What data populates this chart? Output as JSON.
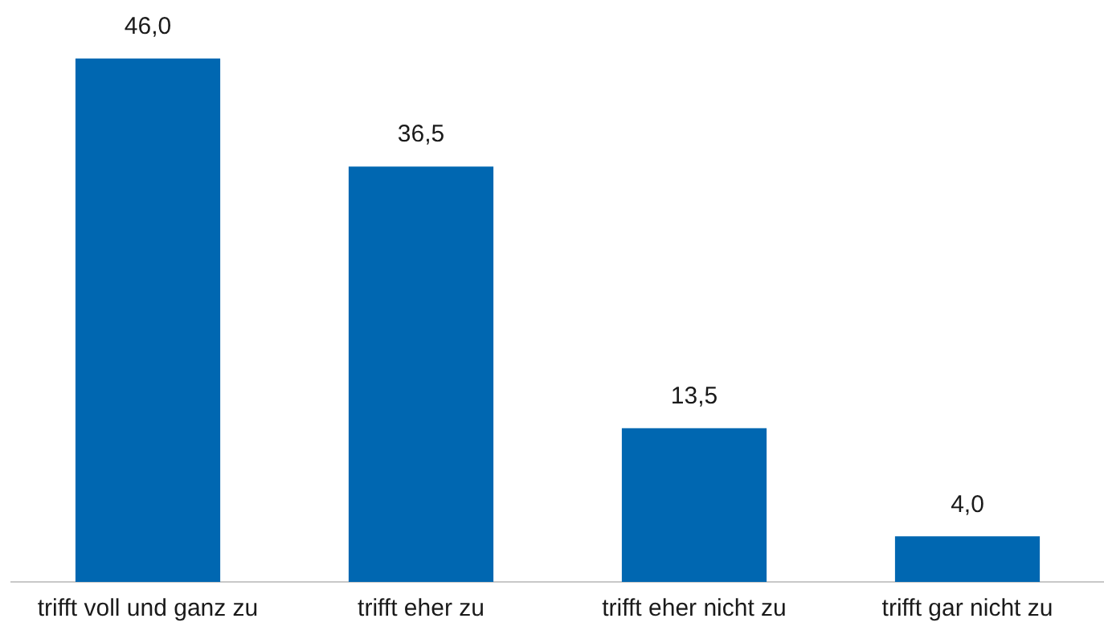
{
  "chart_data": {
    "type": "bar",
    "categories": [
      "trifft voll und ganz zu",
      "trifft eher zu",
      "trifft eher nicht zu",
      "trifft gar nicht zu"
    ],
    "values": [
      46.0,
      36.5,
      13.5,
      4.0
    ],
    "value_labels": [
      "46,0",
      "36,5",
      "13,5",
      "4,0"
    ],
    "color": "#0067b1",
    "grid": false,
    "legend": false
  }
}
